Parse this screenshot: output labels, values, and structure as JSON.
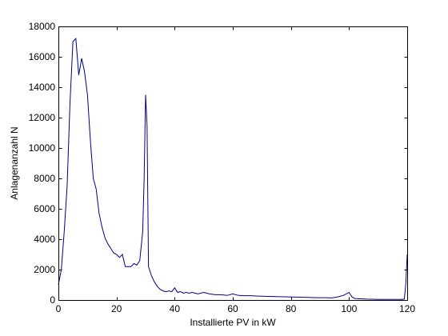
{
  "chart_data": {
    "type": "line",
    "title": "",
    "xlabel": "Installierte PV in kW",
    "ylabel": "Anlagenanzahl N",
    "xlim": [
      0,
      120
    ],
    "ylim": [
      0,
      18000
    ],
    "xticks": [
      0,
      20,
      40,
      60,
      80,
      100,
      120
    ],
    "yticks": [
      0,
      2000,
      4000,
      6000,
      8000,
      10000,
      12000,
      14000,
      16000,
      18000
    ],
    "grid": false,
    "line_color": "#00008b",
    "series": [
      {
        "x": [
          0,
          1,
          2,
          3,
          4,
          5,
          6,
          7,
          8,
          9,
          10,
          11,
          12,
          13,
          14,
          15,
          16,
          17,
          18,
          19,
          20,
          21,
          22,
          23,
          24,
          25,
          26,
          27,
          28,
          29,
          29.5,
          30,
          30.5,
          31,
          32,
          33,
          34,
          35,
          36,
          37,
          38,
          39,
          40,
          41,
          42,
          43,
          44,
          45,
          46,
          48,
          50,
          52,
          54,
          56,
          58,
          60,
          62,
          64,
          66,
          68,
          70,
          72,
          74,
          76,
          78,
          80,
          82,
          84,
          86,
          88,
          90,
          92,
          94,
          96,
          98,
          99,
          100,
          101,
          102,
          104,
          106,
          108,
          110,
          112,
          114,
          116,
          118,
          119,
          119.5,
          120
        ],
        "y": [
          1000,
          2000,
          4500,
          7500,
          13000,
          17000,
          17200,
          14800,
          15900,
          15000,
          13500,
          10500,
          8000,
          7300,
          5700,
          4800,
          4100,
          3700,
          3400,
          3100,
          3000,
          2800,
          3000,
          2200,
          2200,
          2200,
          2400,
          2300,
          2600,
          4500,
          8000,
          13500,
          11500,
          2200,
          1600,
          1200,
          900,
          700,
          600,
          550,
          600,
          550,
          800,
          500,
          550,
          450,
          500,
          450,
          500,
          400,
          500,
          400,
          350,
          350,
          300,
          400,
          300,
          280,
          280,
          260,
          250,
          240,
          230,
          220,
          210,
          200,
          190,
          180,
          170,
          160,
          150,
          150,
          140,
          200,
          300,
          400,
          500,
          200,
          100,
          80,
          60,
          50,
          40,
          40,
          40,
          40,
          40,
          60,
          1000,
          3000
        ]
      }
    ]
  }
}
